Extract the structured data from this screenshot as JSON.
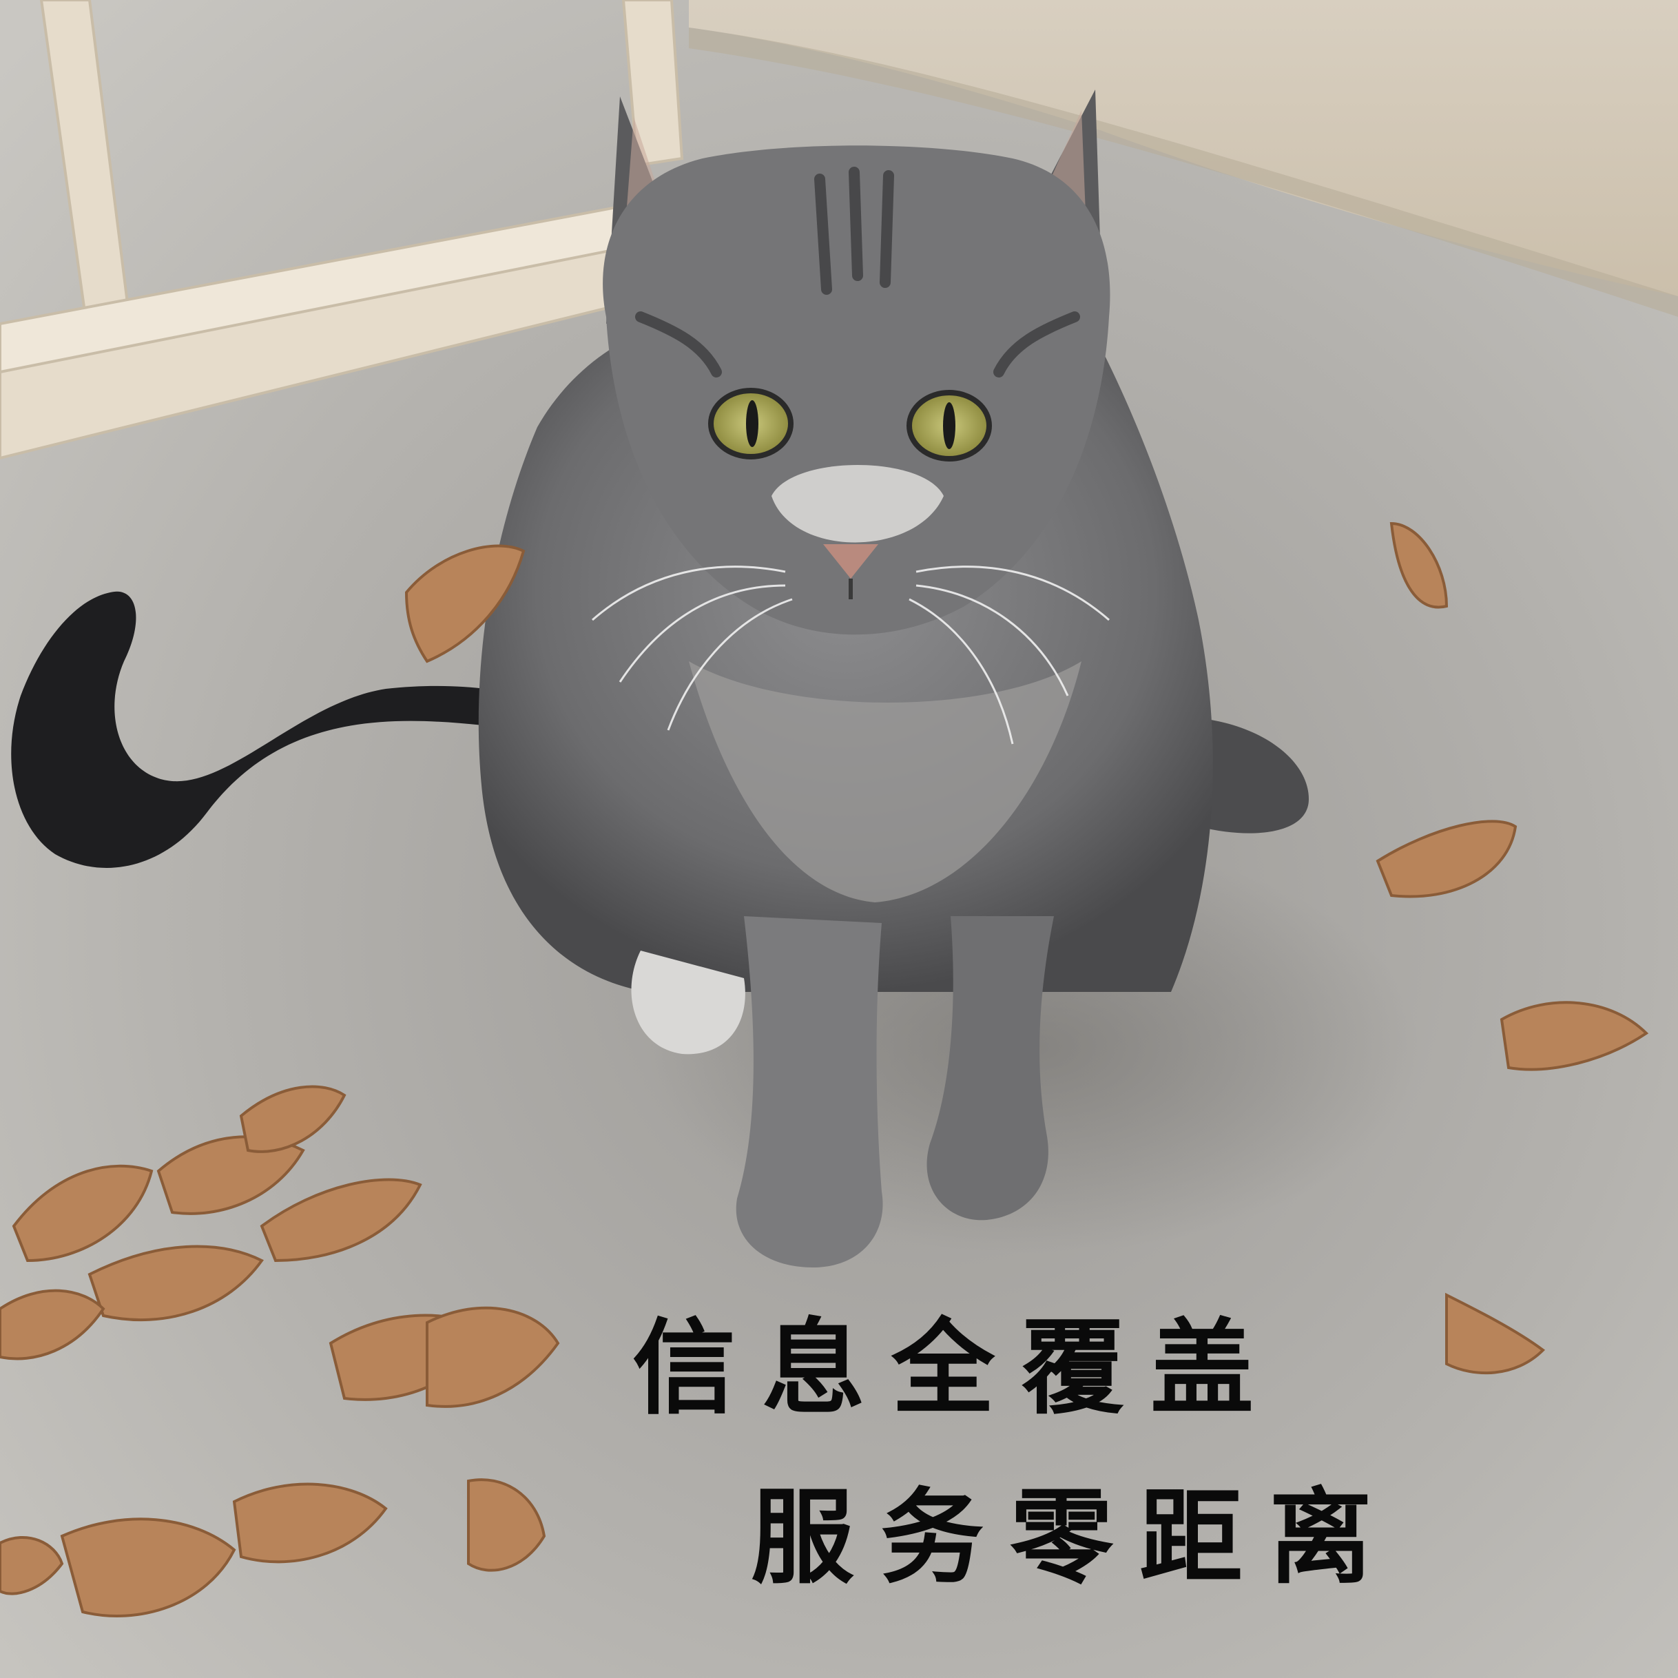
{
  "caption": {
    "line1": "信息全覆盖",
    "line2": "服务零距离"
  },
  "colors": {
    "floor": "#b9b6b1",
    "cat_fur": "#6f6f70",
    "tail": "#1c1c1e",
    "eyes": "#a6a25a",
    "leaves": "#b8845a",
    "caption": "#0a0a0a"
  }
}
